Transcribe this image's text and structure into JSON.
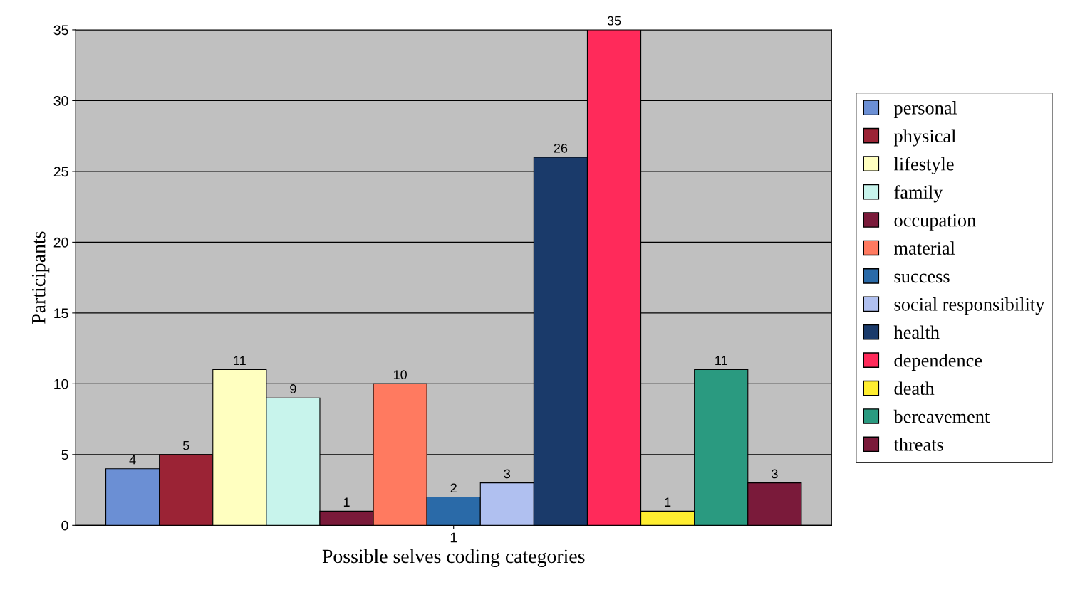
{
  "chart_data": {
    "type": "bar",
    "xlabel": "Possible selves coding categories",
    "ylabel": "Participants",
    "categories": [
      "1"
    ],
    "series": [
      {
        "name": "personal",
        "color": "#6b8fd4",
        "values": [
          4
        ]
      },
      {
        "name": "physical",
        "color": "#9b2335",
        "values": [
          5
        ]
      },
      {
        "name": "lifestyle",
        "color": "#ffffc0",
        "values": [
          11
        ]
      },
      {
        "name": "family",
        "color": "#c8f4ec",
        "values": [
          9
        ]
      },
      {
        "name": "occupation",
        "color": "#7a1a3a",
        "values": [
          1
        ]
      },
      {
        "name": "material",
        "color": "#ff7a60",
        "values": [
          10
        ]
      },
      {
        "name": "success",
        "color": "#2a6aa8",
        "values": [
          2
        ]
      },
      {
        "name": "social responsibility",
        "color": "#b0c0f0",
        "values": [
          3
        ]
      },
      {
        "name": "health",
        "color": "#1a3a6a",
        "values": [
          26
        ]
      },
      {
        "name": "dependence",
        "color": "#ff2a5a",
        "values": [
          35
        ]
      },
      {
        "name": "death",
        "color": "#ffee30",
        "values": [
          1
        ]
      },
      {
        "name": "bereavement",
        "color": "#2a9a80",
        "values": [
          11
        ]
      },
      {
        "name": "threats",
        "color": "#7a1a3a",
        "values": [
          3
        ]
      }
    ],
    "ylim": [
      0,
      35
    ],
    "yticks": [
      0,
      5,
      10,
      15,
      20,
      25,
      30,
      35
    ],
    "grid": "y",
    "data_labels": true,
    "legend": "right"
  }
}
